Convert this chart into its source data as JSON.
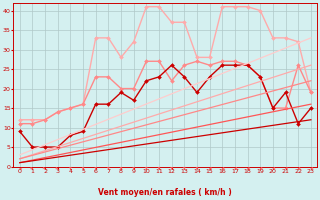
{
  "xlabel": "Vent moyen/en rafales ( km/h )",
  "background_color": "#d4f0f0",
  "grid_color": "#b0c8c8",
  "x_ticks": [
    0,
    1,
    2,
    3,
    4,
    5,
    6,
    7,
    8,
    9,
    10,
    11,
    12,
    13,
    14,
    15,
    16,
    17,
    18,
    19,
    20,
    21,
    22,
    23
  ],
  "y_ticks": [
    0,
    5,
    10,
    15,
    20,
    25,
    30,
    35,
    40
  ],
  "xlim": [
    -0.5,
    23.5
  ],
  "ylim": [
    0,
    42
  ],
  "series": [
    {
      "x": [
        0,
        1,
        2,
        3,
        4,
        5,
        6,
        7,
        8,
        9,
        10,
        11,
        12,
        13,
        14,
        15,
        16,
        17,
        18,
        19,
        20,
        21,
        22,
        23
      ],
      "y": [
        12,
        12,
        12,
        14,
        15,
        16,
        33,
        33,
        28,
        32,
        41,
        41,
        37,
        37,
        28,
        28,
        41,
        41,
        41,
        40,
        33,
        33,
        32,
        19
      ],
      "color": "#ffaaaa",
      "marker": "D",
      "markersize": 2.0,
      "linewidth": 1.0,
      "alpha": 1.0,
      "linestyle": "-"
    },
    {
      "x": [
        0,
        1,
        2,
        3,
        4,
        5,
        6,
        7,
        8,
        9,
        10,
        11,
        12,
        13,
        14,
        15,
        16,
        17,
        18,
        19,
        20,
        21,
        22,
        23
      ],
      "y": [
        11,
        11,
        12,
        14,
        15,
        16,
        23,
        23,
        20,
        20,
        27,
        27,
        22,
        26,
        27,
        26,
        27,
        27,
        26,
        23,
        15,
        15,
        26,
        19
      ],
      "color": "#ff8888",
      "marker": "D",
      "markersize": 2.0,
      "linewidth": 1.0,
      "alpha": 1.0,
      "linestyle": "-"
    },
    {
      "x": [
        0,
        1,
        2,
        3,
        4,
        5,
        6,
        7,
        8,
        9,
        10,
        11,
        12,
        13,
        14,
        15,
        16,
        17,
        18,
        19,
        20,
        21,
        22,
        23
      ],
      "y": [
        9,
        5,
        5,
        5,
        8,
        9,
        16,
        16,
        19,
        17,
        22,
        23,
        26,
        23,
        19,
        23,
        26,
        26,
        26,
        23,
        15,
        19,
        11,
        15
      ],
      "color": "#cc0000",
      "marker": "D",
      "markersize": 2.0,
      "linewidth": 1.0,
      "alpha": 1.0,
      "linestyle": "-"
    },
    {
      "x": [
        0,
        23
      ],
      "y": [
        3,
        33
      ],
      "color": "#ffcccc",
      "marker": null,
      "linewidth": 0.9,
      "alpha": 1.0,
      "linestyle": "-"
    },
    {
      "x": [
        0,
        23
      ],
      "y": [
        2,
        26
      ],
      "color": "#ffaaaa",
      "marker": null,
      "linewidth": 0.9,
      "alpha": 1.0,
      "linestyle": "-"
    },
    {
      "x": [
        0,
        23
      ],
      "y": [
        2,
        22
      ],
      "color": "#ff8888",
      "marker": null,
      "linewidth": 0.9,
      "alpha": 1.0,
      "linestyle": "-"
    },
    {
      "x": [
        0,
        23
      ],
      "y": [
        1,
        16
      ],
      "color": "#ff5555",
      "marker": null,
      "linewidth": 0.9,
      "alpha": 1.0,
      "linestyle": "-"
    },
    {
      "x": [
        0,
        23
      ],
      "y": [
        1,
        12
      ],
      "color": "#cc0000",
      "marker": null,
      "linewidth": 0.9,
      "alpha": 1.0,
      "linestyle": "-"
    }
  ],
  "arrow_angles": [
    225,
    45,
    45,
    45,
    0,
    0,
    0,
    0,
    0,
    0,
    0,
    0,
    0,
    0,
    0,
    315,
    315,
    315,
    315,
    315,
    315,
    315,
    315,
    315
  ],
  "arrow_color": "#ff6666",
  "axis_color": "#cc0000",
  "tick_color": "#cc0000",
  "xlabel_color": "#cc0000"
}
